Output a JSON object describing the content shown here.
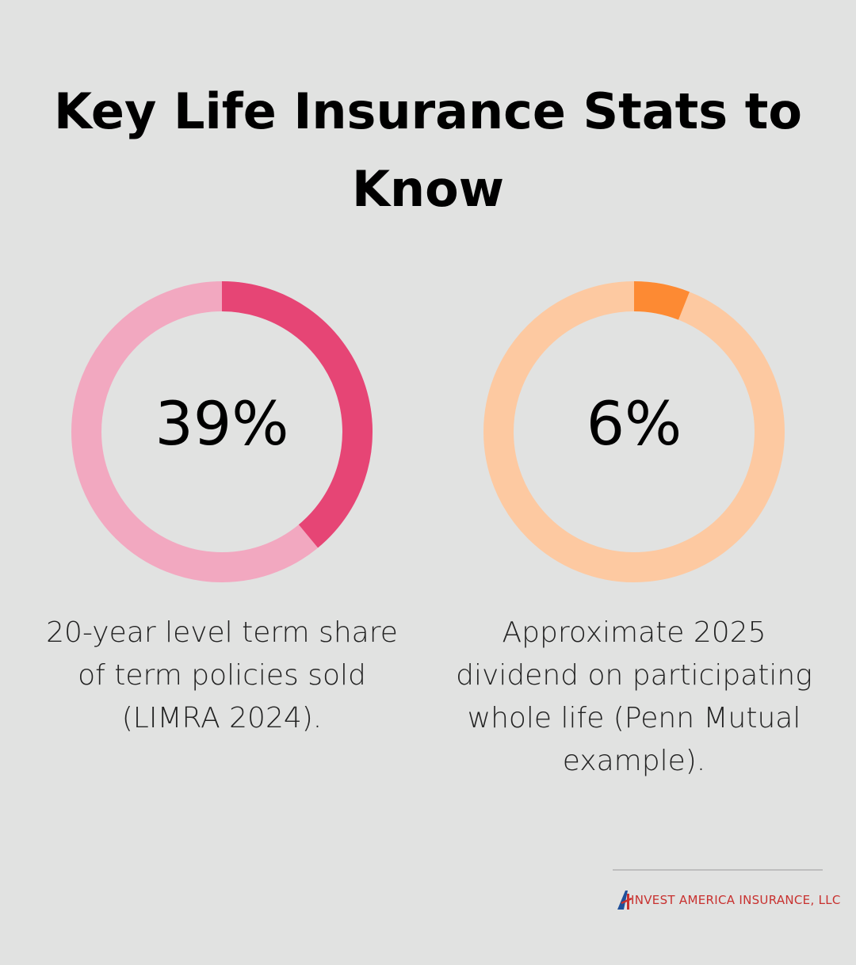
{
  "title": "Key Life Insurance Stats to Know",
  "chart_data": [
    {
      "type": "donut",
      "values": [
        39
      ],
      "value_labels": [
        "39%"
      ],
      "ylim": [
        0,
        100
      ],
      "color": "#e64575",
      "track_color": "#f2a8c0",
      "caption": "20-year level term share of term policies sold (LIMRA 2024)."
    },
    {
      "type": "donut",
      "values": [
        6
      ],
      "value_labels": [
        "6%"
      ],
      "ylim": [
        0,
        100
      ],
      "color": "#fd8a33",
      "track_color": "#fdc9a1",
      "caption": "Approximate 2025 dividend on participating whole life (Penn Mutual example)."
    }
  ],
  "footer": {
    "brand": "INVEST AMERICA INSURANCE, LLC"
  }
}
